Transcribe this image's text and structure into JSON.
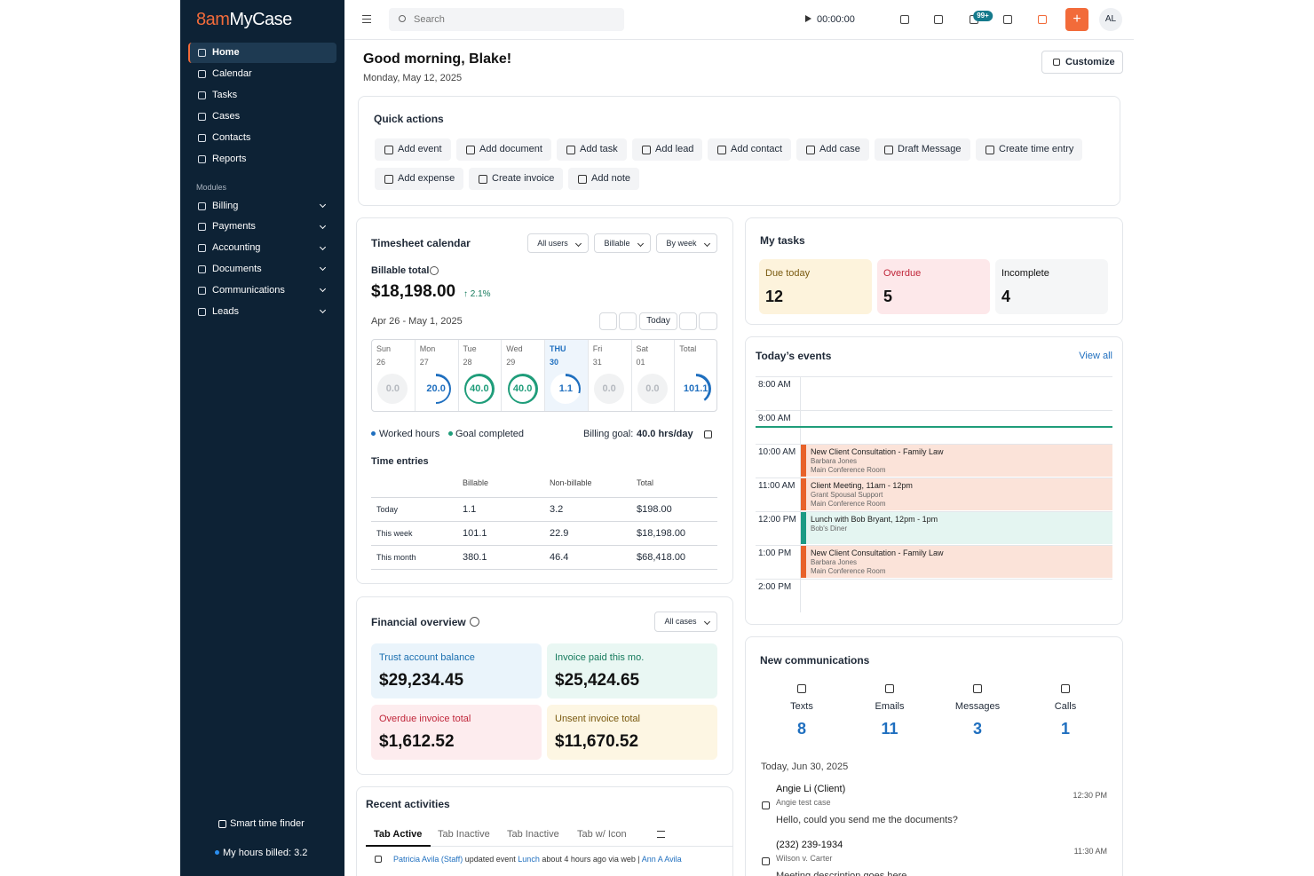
{
  "sidebar": {
    "logo_mark": "8am",
    "logo_text": "MyCase",
    "nav": [
      "Home",
      "Calendar",
      "Tasks",
      "Cases",
      "Contacts",
      "Reports"
    ],
    "modules_label": "Modules",
    "modules": [
      "Billing",
      "Payments",
      "Accounting",
      "Documents",
      "Communications",
      "Leads"
    ],
    "smart_time_finder": "Smart time finder",
    "hours_billed": "My hours billed: 3.2"
  },
  "topbar": {
    "search": "Search",
    "timer": "00:00:00",
    "badge": "99+",
    "add": "+",
    "avatar": "AL"
  },
  "header": {
    "greeting": "Good morning, Blake!",
    "date": "Monday, May 12, 2025",
    "customize": "Customize"
  },
  "quick_actions": {
    "title": "Quick actions",
    "items": [
      "Add event",
      "Add document",
      "Add task",
      "Add lead",
      "Add contact",
      "Add case",
      "Draft Message",
      "Create time entry",
      "Add expense",
      "Create invoice",
      "Add note"
    ]
  },
  "timesheet": {
    "title": "Timesheet calendar",
    "filters": [
      "All users",
      "Billable",
      "By week"
    ],
    "billable_label": "Billable total",
    "billable_total": "$18,198.00",
    "change": "↑ 2.1%",
    "range": "Apr 26 - May 1, 2025",
    "today": "Today",
    "days": [
      {
        "day": "Sun",
        "date": "26",
        "hours": "0.0"
      },
      {
        "day": "Mon",
        "date": "27",
        "hours": "20.0"
      },
      {
        "day": "Tue",
        "date": "28",
        "hours": "40.0"
      },
      {
        "day": "Wed",
        "date": "29",
        "hours": "40.0"
      },
      {
        "day": "THU",
        "date": "30",
        "hours": "1.1"
      },
      {
        "day": "Fri",
        "date": "31",
        "hours": "0.0"
      },
      {
        "day": "Sat",
        "date": "01",
        "hours": "0.0"
      },
      {
        "day": "Total",
        "hours": "101.1"
      }
    ],
    "legend": [
      "Worked hours",
      "Goal completed"
    ],
    "goal_label": "Billing goal:",
    "goal": "40.0 hrs/day",
    "entries_title": "Time entries",
    "columns": [
      "Billable",
      "Non-billable",
      "Total"
    ],
    "rows": [
      {
        "label": "Today",
        "values": [
          "1.1",
          "3.2",
          "$198.00"
        ]
      },
      {
        "label": "This week",
        "values": [
          "101.1",
          "22.9",
          "$18,198.00"
        ]
      },
      {
        "label": "This month",
        "values": [
          "380.1",
          "46.4",
          "$68,418.00"
        ]
      }
    ]
  },
  "financial": {
    "title": "Financial overview",
    "filter": "All cases",
    "cards": [
      {
        "label": "Trust account balance",
        "amount": "$29,234.45"
      },
      {
        "label": "Invoice paid this mo.",
        "amount": "$25,424.65"
      },
      {
        "label": "Overdue invoice total",
        "amount": "$1,612.52"
      },
      {
        "label": "Unsent invoice total",
        "amount": "$11,670.52"
      }
    ]
  },
  "activities": {
    "title": "Recent activities",
    "tabs": [
      "Tab Active",
      "Tab Inactive",
      "Tab Inactive",
      "Tab w/ Icon"
    ],
    "entry": {
      "actor": "Patricia Avila (Staff)",
      "action": "updated event",
      "object": "Lunch",
      "meta": "about 4 hours ago via web |",
      "user": "Ann A Avila"
    }
  },
  "tasks": {
    "title": "My tasks",
    "items": [
      {
        "label": "Due today",
        "count": 12
      },
      {
        "label": "Overdue",
        "count": 5
      },
      {
        "label": "Incomplete",
        "count": 4
      }
    ]
  },
  "events": {
    "title": "Today’s events",
    "view_all": "View all",
    "times": [
      "8:00 AM",
      "9:00 AM",
      "10:00 AM",
      "11:00 AM",
      "12:00 PM",
      "1:00 PM",
      "2:00 PM"
    ],
    "items": [
      {
        "title": "New Client Consultation - Family Law",
        "lines": [
          "Barbara Jones",
          "Main Conference Room"
        ]
      },
      {
        "title": "Client Meeting, 11am - 12pm",
        "lines": [
          "Grant Spousal Support",
          "Main Conference Room"
        ]
      },
      {
        "title": "Lunch with Bob Bryant, 12pm - 1pm",
        "lines": [
          "Bob's Diner"
        ]
      },
      {
        "title": "New Client Consultation - Family Law",
        "lines": [
          "Barbara Jones",
          "Main Conference Room"
        ]
      }
    ]
  },
  "communications": {
    "title": "New communications",
    "counts": [
      {
        "label": "Texts",
        "count": 8
      },
      {
        "label": "Emails",
        "count": 11
      },
      {
        "label": "Messages",
        "count": 3
      },
      {
        "label": "Calls",
        "count": 1
      }
    ],
    "date": "Today, Jun 30, 2025",
    "messages": [
      {
        "name": "Angie Li (Client)",
        "case": "Angie test case",
        "text": "Hello, could you send me the documents?",
        "time": "12:30 PM"
      },
      {
        "name": "(232) 239-1934",
        "case": "Wilson v. Carter",
        "text": "Meeting description goes here",
        "time": "11:30 AM"
      }
    ]
  }
}
